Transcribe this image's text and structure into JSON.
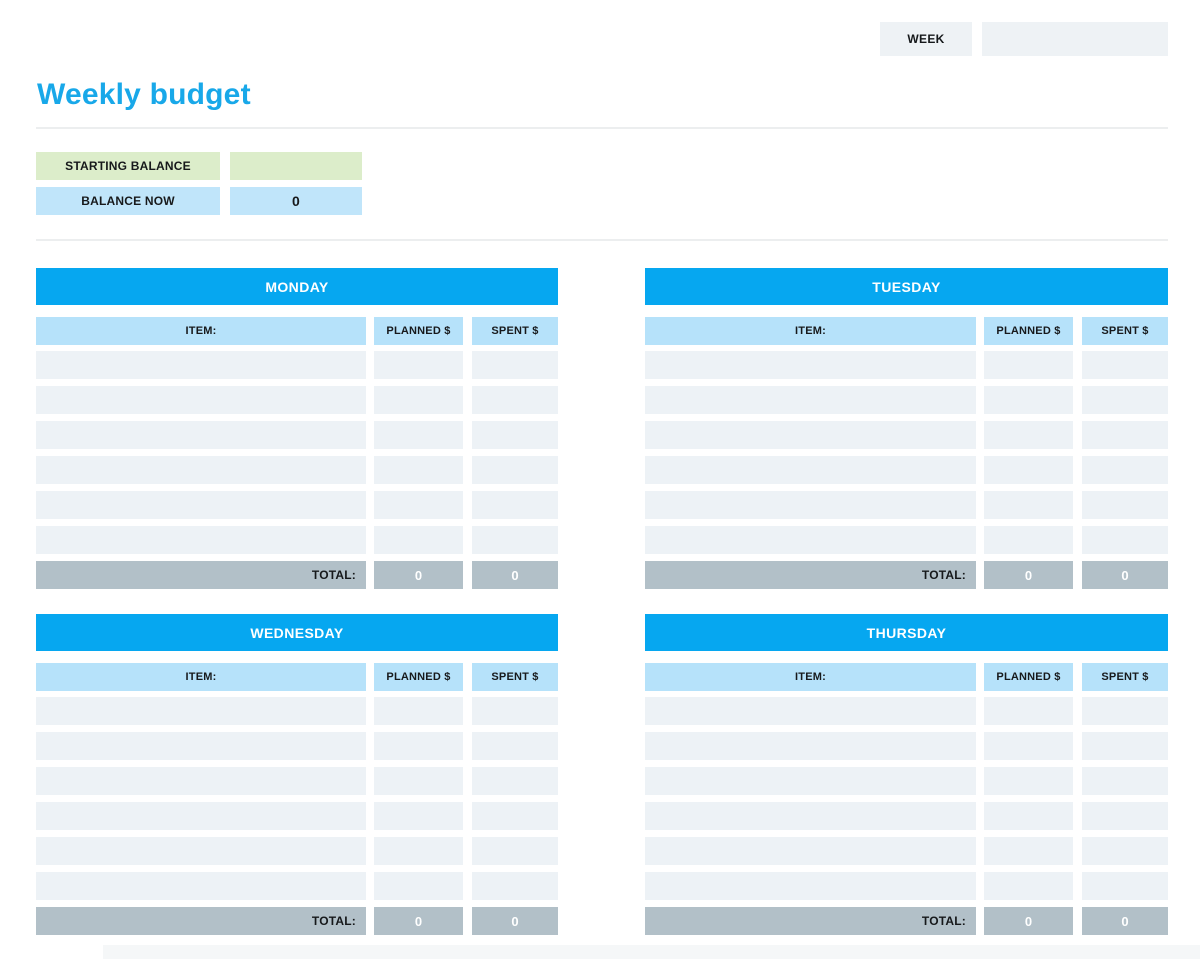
{
  "header": {
    "week_label": "WEEK",
    "week_value": ""
  },
  "page_title": "Weekly budget",
  "balance": {
    "starting_label": "STARTING BALANCE",
    "starting_value": "",
    "now_label": "BALANCE NOW",
    "now_value": "0"
  },
  "table_columns": {
    "item": "ITEM:",
    "planned": "PLANNED $",
    "spent": "SPENT $"
  },
  "total_label": "TOTAL:",
  "days": [
    {
      "name": "MONDAY",
      "rows": [
        [
          "",
          "",
          ""
        ],
        [
          "",
          "",
          ""
        ],
        [
          "",
          "",
          ""
        ],
        [
          "",
          "",
          ""
        ],
        [
          "",
          "",
          ""
        ],
        [
          "",
          "",
          ""
        ]
      ],
      "total_planned": "0",
      "total_spent": "0"
    },
    {
      "name": "TUESDAY",
      "rows": [
        [
          "",
          "",
          ""
        ],
        [
          "",
          "",
          ""
        ],
        [
          "",
          "",
          ""
        ],
        [
          "",
          "",
          ""
        ],
        [
          "",
          "",
          ""
        ],
        [
          "",
          "",
          ""
        ]
      ],
      "total_planned": "0",
      "total_spent": "0"
    },
    {
      "name": "WEDNESDAY",
      "rows": [
        [
          "",
          "",
          ""
        ],
        [
          "",
          "",
          ""
        ],
        [
          "",
          "",
          ""
        ],
        [
          "",
          "",
          ""
        ],
        [
          "",
          "",
          ""
        ],
        [
          "",
          "",
          ""
        ]
      ],
      "total_planned": "0",
      "total_spent": "0"
    },
    {
      "name": "THURSDAY",
      "rows": [
        [
          "",
          "",
          ""
        ],
        [
          "",
          "",
          ""
        ],
        [
          "",
          "",
          ""
        ],
        [
          "",
          "",
          ""
        ],
        [
          "",
          "",
          ""
        ],
        [
          "",
          "",
          ""
        ]
      ],
      "total_planned": "0",
      "total_spent": "0"
    }
  ],
  "colors": {
    "accent_blue": "#06a7f0",
    "title_blue": "#18a8e9",
    "light_blue": "#b6e2fa",
    "balance_blue": "#c0e5fa",
    "starting_green": "#dcedca",
    "row_gray": "#edf2f6",
    "total_gray": "#b2c0c8",
    "field_gray": "#eef2f5"
  }
}
